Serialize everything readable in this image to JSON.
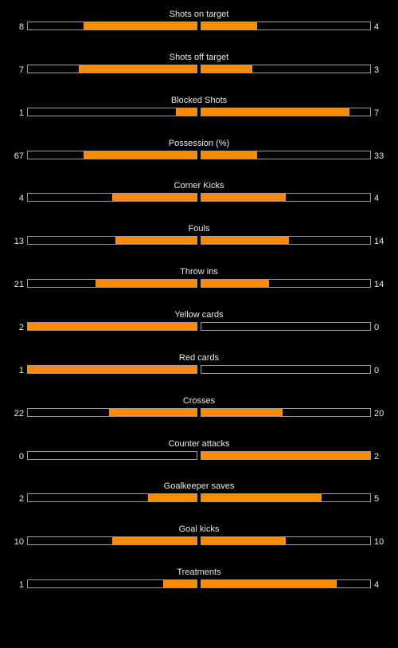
{
  "colors": {
    "background": "#000000",
    "bar_fill": "#ff8c00",
    "bar_border": "#9a9a9a",
    "text": "#e8e8e8"
  },
  "stats": [
    {
      "label": "Shots on target",
      "home": "8",
      "away": "4",
      "home_fill": 0.67,
      "away_fill": 0.33
    },
    {
      "label": "Shots off target",
      "home": "7",
      "away": "3",
      "home_fill": 0.7,
      "away_fill": 0.3
    },
    {
      "label": "Blocked Shots",
      "home": "1",
      "away": "7",
      "home_fill": 0.125,
      "away_fill": 0.875
    },
    {
      "label": "Possession (%)",
      "home": "67",
      "away": "33",
      "home_fill": 0.67,
      "away_fill": 0.33
    },
    {
      "label": "Corner Kicks",
      "home": "4",
      "away": "4",
      "home_fill": 0.5,
      "away_fill": 0.5
    },
    {
      "label": "Fouls",
      "home": "13",
      "away": "14",
      "home_fill": 0.48,
      "away_fill": 0.52
    },
    {
      "label": "Throw ins",
      "home": "21",
      "away": "14",
      "home_fill": 0.6,
      "away_fill": 0.4
    },
    {
      "label": "Yellow cards",
      "home": "2",
      "away": "0",
      "home_fill": 1.0,
      "away_fill": 0.0
    },
    {
      "label": "Red cards",
      "home": "1",
      "away": "0",
      "home_fill": 1.0,
      "away_fill": 0.0
    },
    {
      "label": "Crosses",
      "home": "22",
      "away": "20",
      "home_fill": 0.52,
      "away_fill": 0.48
    },
    {
      "label": "Counter attacks",
      "home": "0",
      "away": "2",
      "home_fill": 0.0,
      "away_fill": 1.0
    },
    {
      "label": "Goalkeeper saves",
      "home": "2",
      "away": "5",
      "home_fill": 0.29,
      "away_fill": 0.71
    },
    {
      "label": "Goal kicks",
      "home": "10",
      "away": "10",
      "home_fill": 0.5,
      "away_fill": 0.5
    },
    {
      "label": "Treatments",
      "home": "1",
      "away": "4",
      "home_fill": 0.2,
      "away_fill": 0.8
    }
  ]
}
